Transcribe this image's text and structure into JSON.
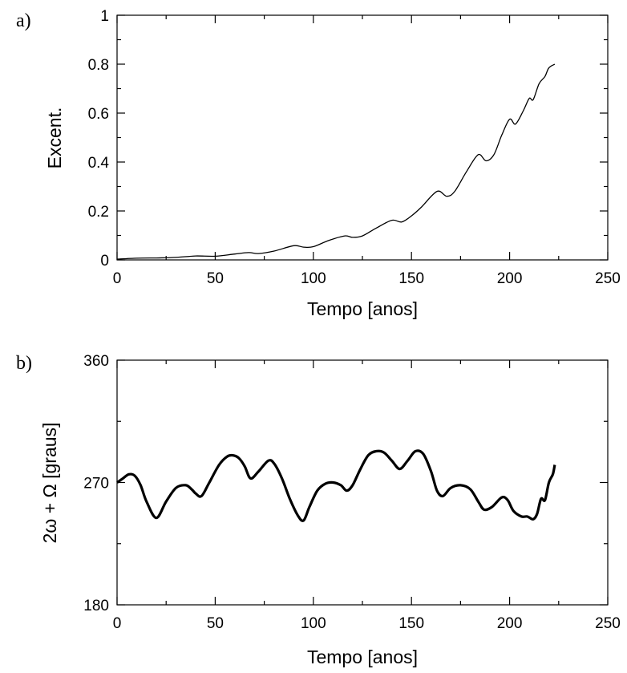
{
  "chart_data": [
    {
      "type": "line",
      "panel_label": "a)",
      "xlabel": "Tempo [anos]",
      "ylabel": "Excent.",
      "xlim": [
        0,
        250
      ],
      "ylim": [
        0,
        1
      ],
      "xticks": [
        0,
        50,
        100,
        150,
        200,
        250
      ],
      "xtick_labels": [
        "0",
        "50",
        "100",
        "150",
        "200",
        "250"
      ],
      "yticks": [
        0,
        0.2,
        0.4,
        0.6,
        0.8,
        1
      ],
      "ytick_labels": [
        "0",
        "0.2",
        "0.4",
        "0.6",
        "0.8",
        "1"
      ],
      "grid": false,
      "series": [
        {
          "x": [
            0,
            10,
            20,
            30,
            40,
            50,
            60,
            67,
            72,
            80,
            90,
            95,
            100,
            108,
            116,
            120,
            125,
            132,
            140,
            145,
            150,
            155,
            163,
            168,
            172,
            178,
            184,
            188,
            192,
            196,
            200,
            203,
            207,
            210,
            212,
            215,
            218,
            220,
            223
          ],
          "y": [
            0.003,
            0.007,
            0.008,
            0.01,
            0.016,
            0.015,
            0.024,
            0.03,
            0.026,
            0.036,
            0.058,
            0.052,
            0.054,
            0.08,
            0.098,
            0.092,
            0.098,
            0.13,
            0.162,
            0.155,
            0.18,
            0.215,
            0.28,
            0.26,
            0.28,
            0.36,
            0.43,
            0.405,
            0.43,
            0.51,
            0.575,
            0.555,
            0.61,
            0.66,
            0.655,
            0.72,
            0.75,
            0.785,
            0.8
          ]
        }
      ]
    },
    {
      "type": "line",
      "panel_label": "b)",
      "xlabel": "Tempo [anos]",
      "ylabel": "2ω + Ω [graus]",
      "xlim": [
        0,
        250
      ],
      "ylim": [
        180,
        360
      ],
      "xticks": [
        0,
        50,
        100,
        150,
        200,
        250
      ],
      "xtick_labels": [
        "0",
        "50",
        "100",
        "150",
        "200",
        "250"
      ],
      "yticks": [
        180,
        270,
        360
      ],
      "ytick_labels": [
        "180",
        "270",
        "360"
      ],
      "grid": false,
      "series": [
        {
          "x": [
            0,
            3,
            6,
            9,
            12,
            15,
            20,
            25,
            30,
            35,
            38,
            40,
            43,
            47,
            52,
            56,
            59,
            62,
            65,
            68,
            72,
            77,
            80,
            84,
            88,
            92,
            95,
            98,
            102,
            106,
            110,
            114,
            117,
            120,
            124,
            128,
            132,
            136,
            140,
            144,
            148,
            152,
            156,
            160,
            163,
            166,
            170,
            175,
            180,
            184,
            187,
            191,
            196,
            199,
            202,
            206,
            209,
            212,
            214,
            216,
            218,
            220,
            222,
            223
          ],
          "y": [
            270,
            273,
            276,
            275,
            268,
            256,
            244,
            256,
            266,
            268,
            265,
            262,
            260,
            270,
            283,
            289,
            290,
            288,
            282,
            273,
            278,
            286,
            284,
            273,
            258,
            246,
            242,
            252,
            264,
            269,
            270,
            268,
            264,
            268,
            280,
            290,
            293,
            292,
            286,
            280,
            286,
            293,
            291,
            278,
            264,
            260,
            266,
            268,
            265,
            256,
            250,
            252,
            259,
            257,
            249,
            245,
            245,
            243,
            247,
            258,
            257,
            270,
            276,
            283
          ]
        }
      ]
    }
  ]
}
